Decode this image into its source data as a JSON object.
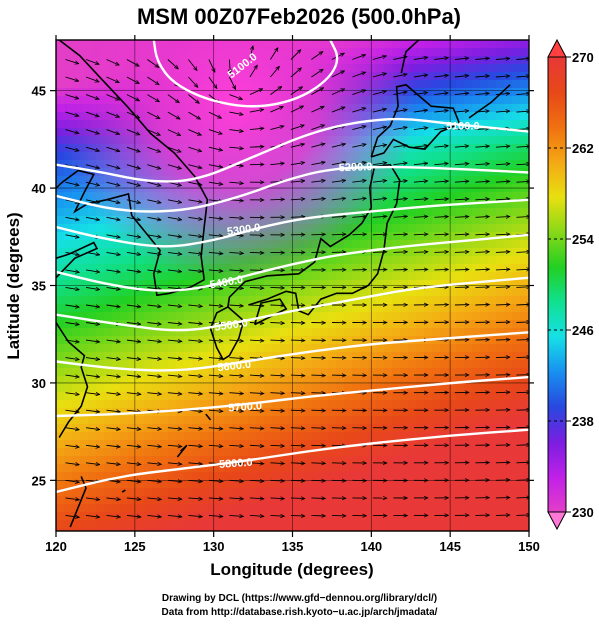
{
  "title": "MSM 00Z07Feb2026 (500.0hPa)",
  "x_axis": {
    "label": "Longitude (degrees)",
    "min": 120,
    "max": 150,
    "ticks": [
      {
        "value": 120,
        "label": "120"
      },
      {
        "value": 125,
        "label": "125"
      },
      {
        "value": 130,
        "label": "130"
      },
      {
        "value": 135,
        "label": "135"
      },
      {
        "value": 140,
        "label": "140"
      },
      {
        "value": 145,
        "label": "145"
      },
      {
        "value": 150,
        "label": "150"
      }
    ]
  },
  "y_axis": {
    "label": "Latitude  (degrees)",
    "min": 22.4,
    "max": 47.6,
    "ticks": [
      {
        "value": 25,
        "label": "25"
      },
      {
        "value": 30,
        "label": "30"
      },
      {
        "value": 35,
        "label": "35"
      },
      {
        "value": 40,
        "label": "40"
      },
      {
        "value": 45,
        "label": "45"
      }
    ]
  },
  "colorbar": {
    "min": 230,
    "max": 270,
    "ticks": [
      {
        "value": 230,
        "label": "230"
      },
      {
        "value": 238,
        "label": "238"
      },
      {
        "value": 246,
        "label": "246"
      },
      {
        "value": 254,
        "label": "254"
      },
      {
        "value": 262,
        "label": "262"
      },
      {
        "value": 270,
        "label": "270"
      }
    ],
    "stops": [
      "#e33ec8",
      "#c020e8",
      "#7a1ee0",
      "#2848e0",
      "#1890f0",
      "#16e0e6",
      "#10e090",
      "#22d022",
      "#88d818",
      "#e8e010",
      "#f4a814",
      "#f07010",
      "#e84818",
      "#e83838"
    ],
    "cap_low_color": "#ff78d8",
    "cap_high_color": "#ff4040"
  },
  "contours": [
    {
      "label": "5100.0",
      "label_lon": 131.8,
      "label_lat": 46.3,
      "label_angle": -38
    },
    {
      "label": "5100.0",
      "label_lon": 145.8,
      "label_lat": 43.2,
      "label_angle": 0
    },
    {
      "label": "5200.0",
      "label_lon": 139.0,
      "label_lat": 41.1,
      "label_angle": -2
    },
    {
      "label": "5300.0",
      "label_lon": 131.9,
      "label_lat": 37.9,
      "label_angle": -8
    },
    {
      "label": "5400.0",
      "label_lon": 130.8,
      "label_lat": 35.2,
      "label_angle": -10
    },
    {
      "label": "5500.0",
      "label_lon": 131.1,
      "label_lat": 33.0,
      "label_angle": -8
    },
    {
      "label": "5600.0",
      "label_lon": 131.3,
      "label_lat": 30.9,
      "label_angle": -6
    },
    {
      "label": "5700.0",
      "label_lon": 132.0,
      "label_lat": 28.8,
      "label_angle": -4
    },
    {
      "label": "5800.0",
      "label_lon": 131.4,
      "label_lat": 25.9,
      "label_angle": -4
    }
  ],
  "credits": [
    "Drawing by DCL (https://www.gfd−dennou.org/library/dcl/)",
    "Data from http://database.rish.kyoto−u.ac.jp/arch/jmadata/"
  ]
}
